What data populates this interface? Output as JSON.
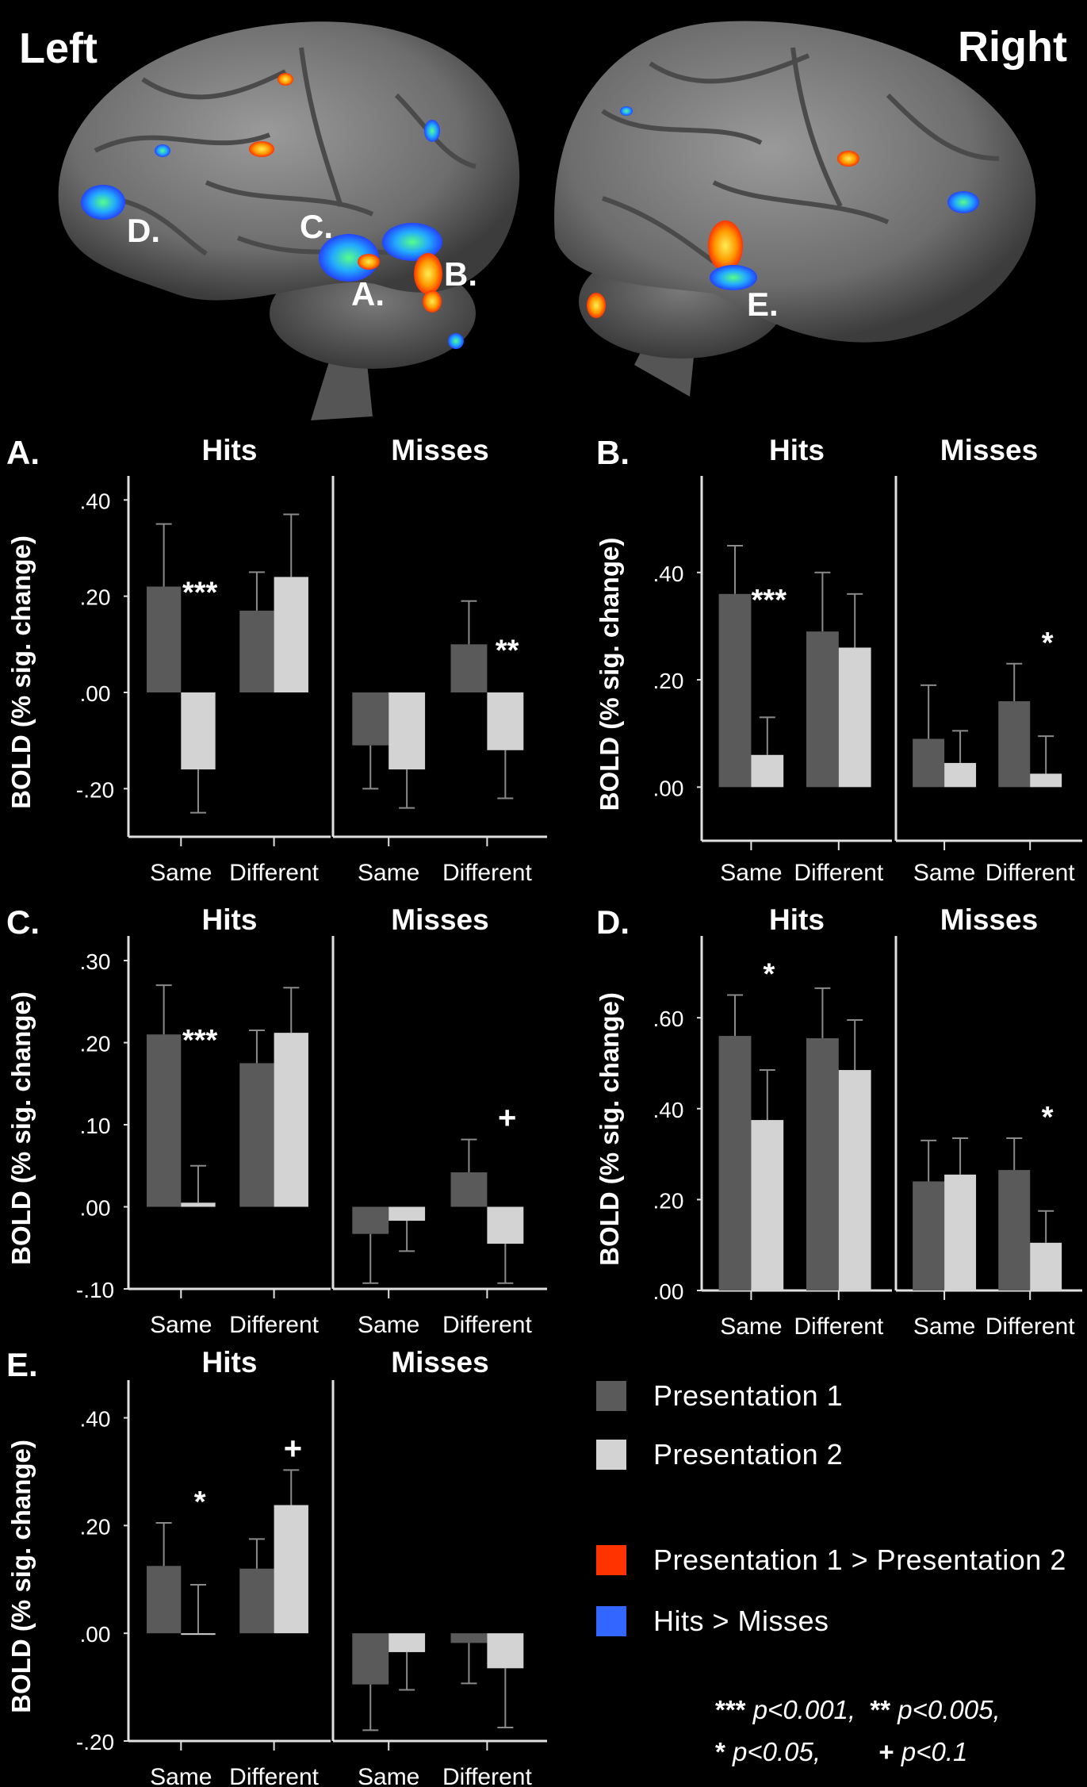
{
  "hemispheres": {
    "left": "Left",
    "right": "Right"
  },
  "brain_regions": [
    "A.",
    "B.",
    "C.",
    "D.",
    "E."
  ],
  "legend": {
    "items": [
      {
        "label": "Presentation 1",
        "color": "#5a5a5a"
      },
      {
        "label": "Presentation 2",
        "color": "#d3d3d3"
      },
      {
        "label": "Presentation 1 > Presentation 2",
        "color": "#ff3300"
      },
      {
        "label": "Hits > Misses",
        "color": "#3366ff"
      }
    ],
    "sig": {
      "l1_sym1": "***",
      "l1_txt1": "p<0.001,",
      "l1_sym2": "**",
      "l1_txt2": "p<0.005,",
      "l2_sym1": "*",
      "l2_txt1": "p<0.05,",
      "l2_sym2": "+",
      "l2_txt2": "p<0.1"
    }
  },
  "chart_data": [
    {
      "type": "bar",
      "title": "A.",
      "ylabel": "BOLD (% sig. change)",
      "ylim": [
        -0.3,
        0.45
      ],
      "yticks": [
        -0.2,
        0.0,
        0.2,
        0.4
      ],
      "ytick_labels": [
        "-.20",
        ".00",
        ".20",
        ".40"
      ],
      "categories": [
        "Same",
        "Different"
      ],
      "panels": [
        {
          "name": "Hits",
          "series": [
            {
              "name": "Presentation 1",
              "values": [
                0.22,
                0.17
              ],
              "errors": [
                0.13,
                0.08
              ]
            },
            {
              "name": "Presentation 2",
              "values": [
                -0.16,
                0.24
              ],
              "errors": [
                0.09,
                0.13
              ]
            }
          ],
          "annotations": [
            "***",
            ""
          ]
        },
        {
          "name": "Misses",
          "series": [
            {
              "name": "Presentation 1",
              "values": [
                -0.11,
                0.1
              ],
              "errors": [
                0.09,
                0.09
              ]
            },
            {
              "name": "Presentation 2",
              "values": [
                -0.16,
                -0.12
              ],
              "errors": [
                0.08,
                0.1
              ]
            }
          ],
          "annotations": [
            "",
            "**"
          ]
        }
      ]
    },
    {
      "type": "bar",
      "title": "B.",
      "ylabel": "BOLD (% sig. change)",
      "ylim": [
        -0.1,
        0.58
      ],
      "yticks": [
        0.0,
        0.2,
        0.4
      ],
      "ytick_labels": [
        ".00",
        ".20",
        ".40"
      ],
      "categories": [
        "Same",
        "Different"
      ],
      "panels": [
        {
          "name": "Hits",
          "series": [
            {
              "name": "Presentation 1",
              "values": [
                0.36,
                0.29
              ],
              "errors": [
                0.09,
                0.11
              ]
            },
            {
              "name": "Presentation 2",
              "values": [
                0.06,
                0.26
              ],
              "errors": [
                0.07,
                0.1
              ]
            }
          ],
          "annotations": [
            "***",
            ""
          ]
        },
        {
          "name": "Misses",
          "series": [
            {
              "name": "Presentation 1",
              "values": [
                0.09,
                0.16
              ],
              "errors": [
                0.1,
                0.07
              ]
            },
            {
              "name": "Presentation 2",
              "values": [
                0.045,
                0.025
              ],
              "errors": [
                0.06,
                0.07
              ]
            }
          ],
          "annotations": [
            "",
            "*"
          ]
        }
      ]
    },
    {
      "type": "bar",
      "title": "C.",
      "ylabel": "BOLD (% sig. change)",
      "ylim": [
        -0.1,
        0.33
      ],
      "yticks": [
        -0.1,
        0.0,
        0.1,
        0.2,
        0.3
      ],
      "ytick_labels": [
        "-.10",
        ".00",
        ".10",
        ".20",
        ".30"
      ],
      "categories": [
        "Same",
        "Different"
      ],
      "panels": [
        {
          "name": "Hits",
          "series": [
            {
              "name": "Presentation 1",
              "values": [
                0.21,
                0.175
              ],
              "errors": [
                0.06,
                0.04
              ]
            },
            {
              "name": "Presentation 2",
              "values": [
                0.005,
                0.212
              ],
              "errors": [
                0.045,
                0.055
              ]
            }
          ],
          "annotations": [
            "***",
            ""
          ]
        },
        {
          "name": "Misses",
          "series": [
            {
              "name": "Presentation 1",
              "values": [
                -0.033,
                0.042
              ],
              "errors": [
                0.06,
                0.04
              ]
            },
            {
              "name": "Presentation 2",
              "values": [
                -0.017,
                -0.045
              ],
              "errors": [
                0.037,
                0.048
              ]
            }
          ],
          "annotations": [
            "",
            "+"
          ]
        }
      ]
    },
    {
      "type": "bar",
      "title": "D.",
      "ylabel": "BOLD (% sig. change)",
      "ylim": [
        0.0,
        0.78
      ],
      "yticks": [
        0.0,
        0.2,
        0.4,
        0.6
      ],
      "ytick_labels": [
        ".00",
        ".20",
        ".40",
        ".60"
      ],
      "categories": [
        "Same",
        "Different"
      ],
      "panels": [
        {
          "name": "Hits",
          "series": [
            {
              "name": "Presentation 1",
              "values": [
                0.56,
                0.555
              ],
              "errors": [
                0.09,
                0.11
              ]
            },
            {
              "name": "Presentation 2",
              "values": [
                0.375,
                0.485
              ],
              "errors": [
                0.11,
                0.11
              ]
            }
          ],
          "annotations": [
            "*",
            ""
          ]
        },
        {
          "name": "Misses",
          "series": [
            {
              "name": "Presentation 1",
              "values": [
                0.24,
                0.265
              ],
              "errors": [
                0.09,
                0.07
              ]
            },
            {
              "name": "Presentation 2",
              "values": [
                0.255,
                0.105
              ],
              "errors": [
                0.08,
                0.07
              ]
            }
          ],
          "annotations": [
            "",
            "*"
          ]
        }
      ]
    },
    {
      "type": "bar",
      "title": "E.",
      "ylabel": "BOLD (% sig. change)",
      "ylim": [
        -0.2,
        0.47
      ],
      "yticks": [
        -0.2,
        0.0,
        0.2,
        0.4
      ],
      "ytick_labels": [
        "-.20",
        ".00",
        ".20",
        ".40"
      ],
      "categories": [
        "Same",
        "Different"
      ],
      "panels": [
        {
          "name": "Hits",
          "series": [
            {
              "name": "Presentation 1",
              "values": [
                0.125,
                0.12
              ],
              "errors": [
                0.08,
                0.055
              ]
            },
            {
              "name": "Presentation 2",
              "values": [
                0.0,
                0.238
              ],
              "errors": [
                0.09,
                0.065
              ]
            }
          ],
          "annotations": [
            "*",
            "+"
          ]
        },
        {
          "name": "Misses",
          "series": [
            {
              "name": "Presentation 1",
              "values": [
                -0.095,
                -0.018
              ],
              "errors": [
                0.085,
                0.075
              ]
            },
            {
              "name": "Presentation 2",
              "values": [
                -0.035,
                -0.065
              ],
              "errors": [
                0.07,
                0.11
              ]
            }
          ],
          "annotations": [
            "",
            ""
          ]
        }
      ]
    }
  ]
}
